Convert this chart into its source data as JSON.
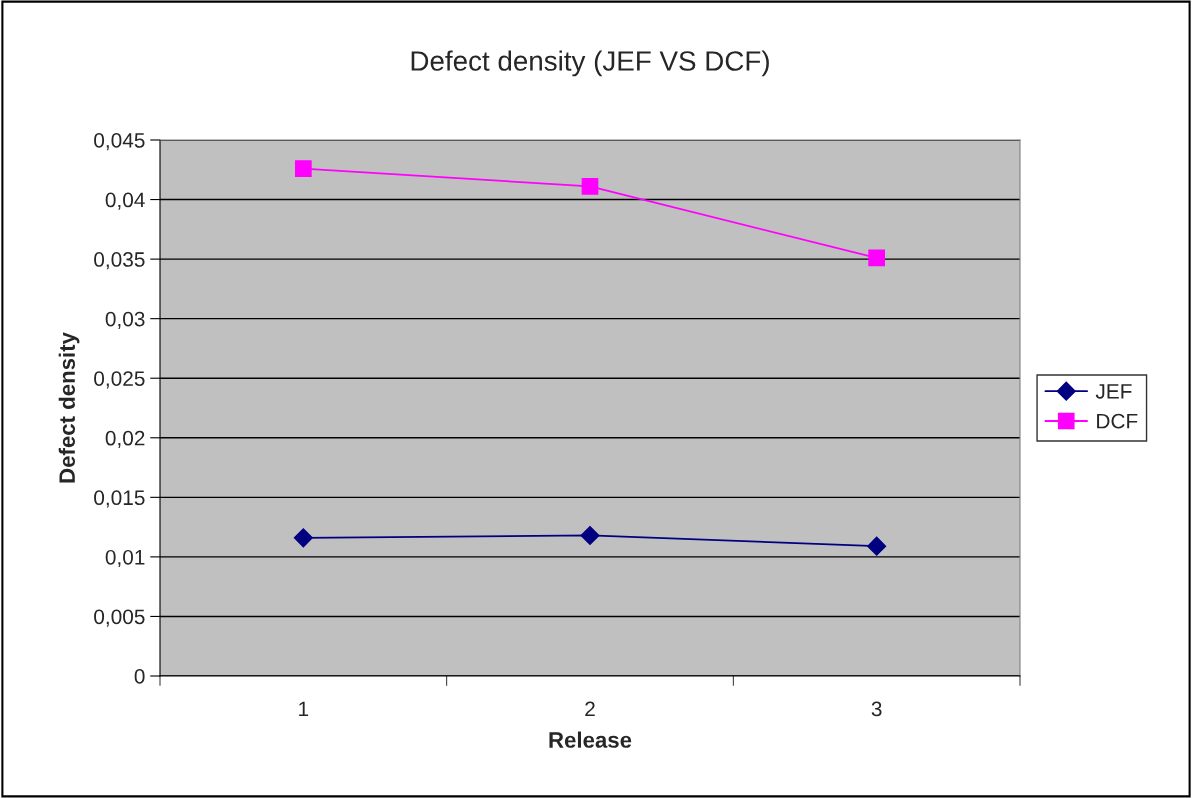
{
  "chart_data": {
    "type": "line",
    "title": "Defect density (JEF VS DCF)",
    "xlabel": "Release",
    "ylabel": "Defect density",
    "categories": [
      "1",
      "2",
      "3"
    ],
    "series": [
      {
        "name": "JEF",
        "color": "#000080",
        "values": [
          0.0116,
          0.0118,
          0.0109
        ],
        "marker": "diamond"
      },
      {
        "name": "DCF",
        "color": "#ff00ff",
        "values": [
          0.0426,
          0.0411,
          0.0351
        ],
        "marker": "square"
      }
    ],
    "ylim": [
      0,
      0.045
    ],
    "yticks": [
      0,
      {
        "value": 0.005,
        "label": "0,005"
      },
      {
        "value": 0.01,
        "label": "0,01"
      },
      {
        "value": 0.015,
        "label": "0,015"
      },
      {
        "value": 0.02,
        "label": "0,02"
      },
      {
        "value": 0.025,
        "label": "0,025"
      },
      {
        "value": 0.03,
        "label": "0,03"
      },
      {
        "value": 0.035,
        "label": "0,035"
      },
      {
        "value": 0.04,
        "label": "0,04"
      },
      {
        "value": 0.045,
        "label": "0,045"
      }
    ],
    "grid": "y",
    "legend": "right"
  }
}
